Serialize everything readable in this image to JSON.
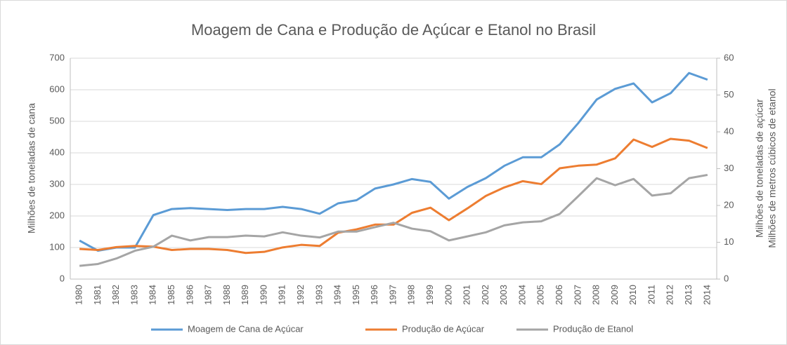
{
  "chart_data": {
    "type": "line",
    "title": "Moagem de Cana e Produção de Açúcar e Etanol no Brasil",
    "ylabel": "Milhões de toneladas de cana",
    "y2label": [
      "Milhões de toneladas de açúcar",
      "Milhões de metros  cúbicos de etanol"
    ],
    "categories": [
      "1980",
      "1981",
      "1982",
      "1983",
      "1984",
      "1985",
      "1986",
      "1987",
      "1988",
      "1989",
      "1990",
      "1991",
      "1992",
      "1993",
      "1994",
      "1995",
      "1996",
      "1997",
      "1998",
      "1999",
      "2000",
      "2001",
      "2002",
      "2003",
      "2004",
      "2005",
      "2006",
      "2007",
      "2008",
      "2009",
      "2010",
      "2011",
      "2012",
      "2013",
      "2014"
    ],
    "series": [
      {
        "name": "Moagem de Cana de Açúcar",
        "color": "#5b9bd5",
        "axis": "y",
        "values": [
          122,
          90,
          100,
          100,
          203,
          222,
          225,
          222,
          219,
          222,
          222,
          229,
          222,
          207,
          240,
          250,
          287,
          300,
          317,
          308,
          255,
          292,
          320,
          359,
          386,
          386,
          427,
          494,
          569,
          603,
          620,
          560,
          589,
          653,
          632
        ]
      },
      {
        "name": "Produção de Açúcar",
        "color": "#ed7d31",
        "axis": "y2",
        "values": [
          8.2,
          7.9,
          8.7,
          9.0,
          8.8,
          7.9,
          8.2,
          8.2,
          7.9,
          7.1,
          7.4,
          8.6,
          9.3,
          9.0,
          12.6,
          13.5,
          14.8,
          14.8,
          18.0,
          19.4,
          16.0,
          19.2,
          22.6,
          24.9,
          26.6,
          25.8,
          30.1,
          30.8,
          31.1,
          32.8,
          37.9,
          35.9,
          38.1,
          37.6,
          35.6
        ]
      },
      {
        "name": "Produção de Etanol",
        "color": "#a5a5a5",
        "axis": "y2",
        "values": [
          3.6,
          4.1,
          5.6,
          7.7,
          8.8,
          11.8,
          10.5,
          11.4,
          11.4,
          11.8,
          11.6,
          12.7,
          11.8,
          11.3,
          12.9,
          12.9,
          14.1,
          15.3,
          13.7,
          13.0,
          10.5,
          11.6,
          12.7,
          14.6,
          15.4,
          15.7,
          17.7,
          22.5,
          27.4,
          25.5,
          27.2,
          22.7,
          23.3,
          27.4,
          28.3
        ]
      }
    ],
    "ylim": [
      0,
      700
    ],
    "yticks": [
      0,
      100,
      200,
      300,
      400,
      500,
      600,
      700
    ],
    "y2lim": [
      0,
      60
    ],
    "y2ticks": [
      0,
      10,
      20,
      30,
      40,
      50,
      60
    ],
    "grid": true,
    "legend": "bottom"
  }
}
